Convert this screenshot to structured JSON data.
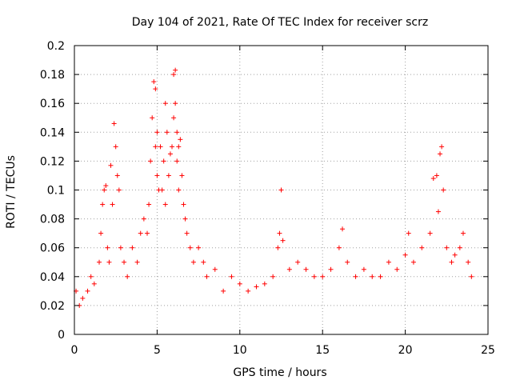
{
  "chart_data": {
    "type": "scatter",
    "title": "Day 104 of 2021, Rate Of TEC Index for receiver scrz",
    "xlabel": "GPS time / hours",
    "ylabel": "ROTI / TECUs",
    "xlim": [
      0,
      25
    ],
    "ylim": [
      0,
      0.2
    ],
    "xticks": [
      0,
      5,
      10,
      15,
      20,
      25
    ],
    "yticks": [
      0,
      0.02,
      0.04,
      0.06,
      0.08,
      0.1,
      0.12,
      0.14,
      0.16,
      0.18,
      0.2
    ],
    "xtick_labels": [
      "0",
      "5",
      "10",
      "15",
      "20",
      "25"
    ],
    "ytick_labels": [
      "0",
      "0.02",
      "0.04",
      "0.06",
      "0.08",
      "0.1",
      "0.12",
      "0.14",
      "0.16",
      "0.18",
      "0.2"
    ],
    "grid": true,
    "marker": "+",
    "color": "#ff0000",
    "series": [
      {
        "name": "ROTI",
        "x": [
          0.1,
          0.3,
          0.5,
          0.8,
          1.0,
          1.2,
          1.5,
          1.6,
          1.7,
          1.8,
          1.9,
          2.0,
          2.1,
          2.2,
          2.3,
          2.4,
          2.5,
          2.6,
          2.7,
          2.8,
          3.0,
          3.2,
          3.5,
          3.8,
          4.0,
          4.2,
          4.4,
          4.5,
          4.6,
          4.7,
          4.8,
          4.9,
          4.9,
          5.0,
          5.0,
          5.1,
          5.2,
          5.3,
          5.4,
          5.5,
          5.5,
          5.6,
          5.7,
          5.8,
          5.9,
          6.0,
          6.0,
          6.1,
          6.1,
          6.2,
          6.2,
          6.3,
          6.3,
          6.4,
          6.5,
          6.6,
          6.7,
          6.8,
          7.0,
          7.2,
          7.5,
          7.8,
          8.0,
          8.5,
          9.0,
          9.5,
          10.0,
          10.5,
          11.0,
          11.5,
          12.0,
          12.3,
          12.4,
          12.5,
          12.6,
          13.0,
          13.5,
          14.0,
          14.5,
          15.0,
          15.5,
          16.0,
          16.2,
          16.5,
          17.0,
          17.5,
          18.0,
          18.5,
          19.0,
          19.5,
          20.0,
          20.2,
          20.5,
          21.0,
          21.5,
          21.7,
          21.9,
          22.0,
          22.1,
          22.2,
          22.3,
          22.5,
          22.8,
          23.0,
          23.3,
          23.5,
          23.8,
          24.0
        ],
        "y": [
          0.03,
          0.02,
          0.025,
          0.03,
          0.04,
          0.035,
          0.05,
          0.07,
          0.09,
          0.1,
          0.103,
          0.06,
          0.05,
          0.117,
          0.09,
          0.146,
          0.13,
          0.11,
          0.1,
          0.06,
          0.05,
          0.04,
          0.06,
          0.05,
          0.07,
          0.08,
          0.07,
          0.09,
          0.12,
          0.15,
          0.175,
          0.13,
          0.17,
          0.11,
          0.14,
          0.1,
          0.13,
          0.1,
          0.12,
          0.16,
          0.09,
          0.14,
          0.11,
          0.125,
          0.13,
          0.18,
          0.15,
          0.183,
          0.16,
          0.14,
          0.12,
          0.13,
          0.1,
          0.135,
          0.11,
          0.09,
          0.08,
          0.07,
          0.06,
          0.05,
          0.06,
          0.05,
          0.04,
          0.045,
          0.03,
          0.04,
          0.035,
          0.03,
          0.033,
          0.035,
          0.04,
          0.06,
          0.07,
          0.1,
          0.065,
          0.045,
          0.05,
          0.045,
          0.04,
          0.04,
          0.045,
          0.06,
          0.073,
          0.05,
          0.04,
          0.045,
          0.04,
          0.04,
          0.05,
          0.045,
          0.055,
          0.07,
          0.05,
          0.06,
          0.07,
          0.108,
          0.11,
          0.085,
          0.125,
          0.13,
          0.1,
          0.06,
          0.05,
          0.055,
          0.06,
          0.07,
          0.05,
          0.04
        ]
      }
    ]
  }
}
